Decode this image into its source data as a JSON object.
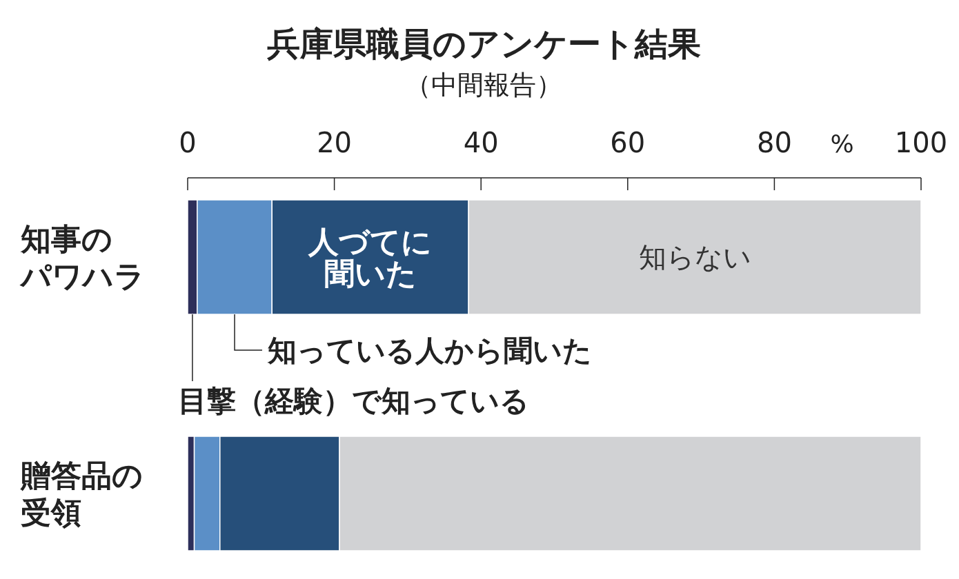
{
  "chart_data": {
    "type": "bar",
    "orientation": "horizontal",
    "stacked": true,
    "title": "兵庫県職員のアンケート結果",
    "subtitle": "（中間報告）",
    "xlabel": "%",
    "categories": [
      "知事のパワハラ",
      "贈答品の受領"
    ],
    "series": [
      {
        "name": "目撃（経験）で知っている",
        "color": "#2d2f5a",
        "values": [
          1.3,
          0.9
        ]
      },
      {
        "name": "知っている人から聞いた",
        "color": "#5b8fc7",
        "values": [
          10.2,
          3.5
        ]
      },
      {
        "name": "人づてに聞いた",
        "color": "#264f7a",
        "values": [
          26.8,
          16.3
        ]
      },
      {
        "name": "知らない",
        "color": "#d1d2d4",
        "values": [
          61.7,
          79.3
        ]
      }
    ],
    "xlim": [
      0,
      100
    ],
    "xticks": [
      0,
      20,
      40,
      60,
      80,
      100
    ]
  }
}
